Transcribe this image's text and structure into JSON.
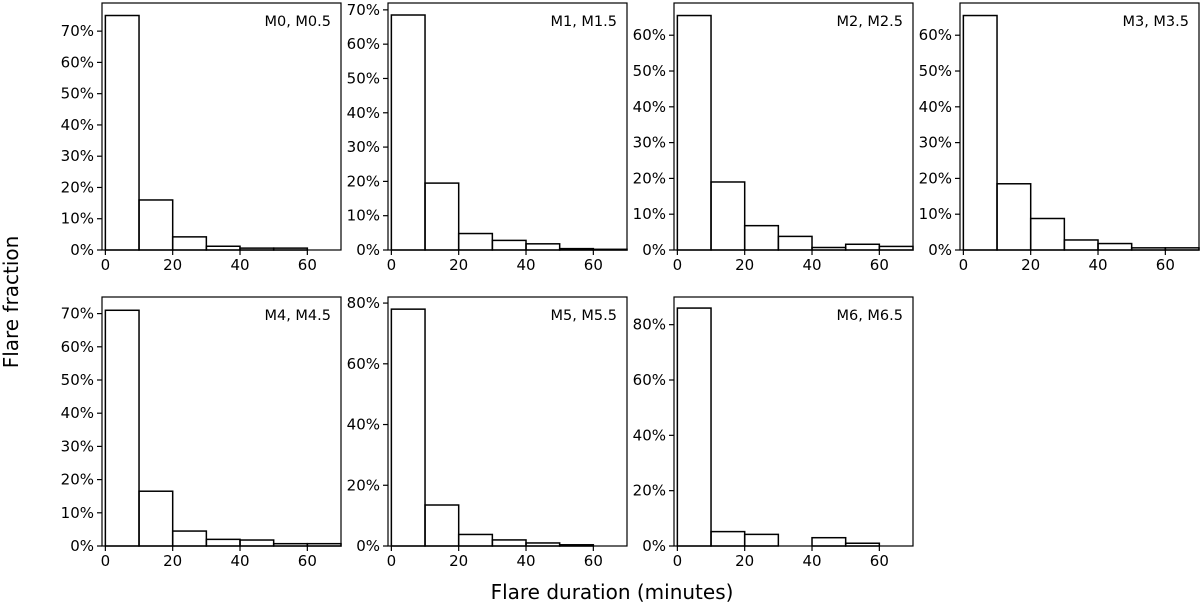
{
  "figure": {
    "xlabel": "Flare duration (minutes)",
    "ylabel": "Flare fraction"
  },
  "chart_data": [
    {
      "type": "bar",
      "title": "M0, M0.5",
      "bin_edges": [
        0,
        10,
        20,
        30,
        40,
        50,
        60
      ],
      "values": [
        75,
        16,
        4.2,
        1.2,
        0.6,
        0.6
      ],
      "xlim": [
        -1,
        70
      ],
      "ylim": [
        0,
        79
      ],
      "xticks": [
        0,
        20,
        40,
        60
      ],
      "yticks": [
        0,
        10,
        20,
        30,
        40,
        50,
        60,
        70
      ],
      "ytick_labels": [
        "0%",
        "10%",
        "20%",
        "30%",
        "40%",
        "50%",
        "60%",
        "70%"
      ]
    },
    {
      "type": "bar",
      "title": "M1, M1.5",
      "bin_edges": [
        0,
        10,
        20,
        30,
        40,
        50,
        60,
        70
      ],
      "values": [
        68.5,
        19.5,
        4.8,
        2.8,
        1.8,
        0.4,
        0.2
      ],
      "xlim": [
        -1,
        70
      ],
      "ylim": [
        0,
        72
      ],
      "xticks": [
        0,
        20,
        40,
        60
      ],
      "yticks": [
        0,
        10,
        20,
        30,
        40,
        50,
        60,
        70
      ],
      "ytick_labels": [
        "0%",
        "10%",
        "20%",
        "30%",
        "40%",
        "50%",
        "60%",
        "70%"
      ]
    },
    {
      "type": "bar",
      "title": "M2, M2.5",
      "bin_edges": [
        0,
        10,
        20,
        30,
        40,
        50,
        60,
        70
      ],
      "values": [
        65.5,
        19,
        6.8,
        3.8,
        0.7,
        1.6,
        1.0
      ],
      "xlim": [
        -1,
        70
      ],
      "ylim": [
        0,
        69
      ],
      "xticks": [
        0,
        20,
        40,
        60
      ],
      "yticks": [
        0,
        10,
        20,
        30,
        40,
        50,
        60
      ],
      "ytick_labels": [
        "0%",
        "10%",
        "20%",
        "30%",
        "40%",
        "50%",
        "60%"
      ]
    },
    {
      "type": "bar",
      "title": "M3, M3.5",
      "bin_edges": [
        0,
        10,
        20,
        30,
        40,
        50,
        60,
        70
      ],
      "values": [
        65.5,
        18.5,
        8.8,
        2.8,
        1.8,
        0.6,
        0.6
      ],
      "xlim": [
        -1,
        70
      ],
      "ylim": [
        0,
        69
      ],
      "xticks": [
        0,
        20,
        40,
        60
      ],
      "yticks": [
        0,
        10,
        20,
        30,
        40,
        50,
        60
      ],
      "ytick_labels": [
        "0%",
        "10%",
        "20%",
        "30%",
        "40%",
        "50%",
        "60%"
      ]
    },
    {
      "type": "bar",
      "title": "M4, M4.5",
      "bin_edges": [
        0,
        10,
        20,
        30,
        40,
        50,
        60,
        70
      ],
      "values": [
        71,
        16.5,
        4.5,
        2.0,
        1.8,
        0.7,
        0.7
      ],
      "xlim": [
        -1,
        70
      ],
      "ylim": [
        0,
        75
      ],
      "xticks": [
        0,
        20,
        40,
        60
      ],
      "yticks": [
        0,
        10,
        20,
        30,
        40,
        50,
        60,
        70
      ],
      "ytick_labels": [
        "0%",
        "10%",
        "20%",
        "30%",
        "40%",
        "50%",
        "60%",
        "70%"
      ]
    },
    {
      "type": "bar",
      "title": "M5, M5.5",
      "bin_edges": [
        0,
        10,
        20,
        30,
        40,
        50,
        60
      ],
      "values": [
        78,
        13.5,
        3.8,
        2.0,
        1.0,
        0.4
      ],
      "xlim": [
        -1,
        70
      ],
      "ylim": [
        0,
        82
      ],
      "xticks": [
        0,
        20,
        40,
        60
      ],
      "yticks": [
        0,
        20,
        40,
        60,
        80
      ],
      "ytick_labels": [
        "0%",
        "20%",
        "40%",
        "60%",
        "80%"
      ]
    },
    {
      "type": "bar",
      "title": "M6, M6.5",
      "bin_edges": [
        0,
        10,
        20,
        30,
        40,
        50,
        60
      ],
      "values": [
        86,
        5.2,
        4.2,
        0,
        3.0,
        1.0
      ],
      "xlim": [
        -1,
        70
      ],
      "ylim": [
        0,
        90
      ],
      "xticks": [
        0,
        20,
        40,
        60
      ],
      "yticks": [
        0,
        20,
        40,
        60,
        80
      ],
      "ytick_labels": [
        "0%",
        "20%",
        "40%",
        "60%",
        "80%"
      ]
    }
  ]
}
